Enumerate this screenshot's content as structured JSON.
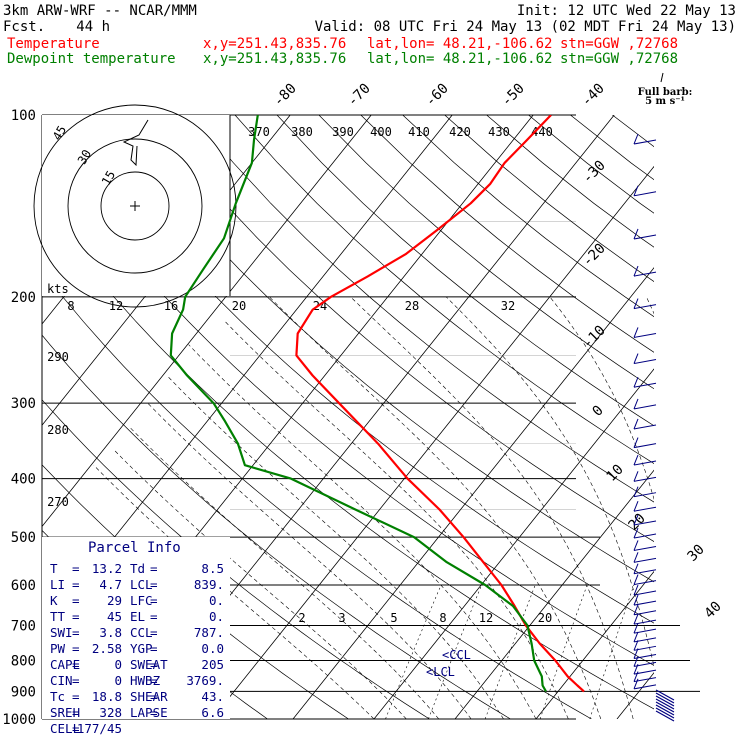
{
  "header": {
    "model": "3km ARW-WRF -- NCAR/MMM",
    "init": "Init: 12 UTC Wed 22 May 13",
    "fcst_label": "Fcst.",
    "fcst_value": "44 h",
    "valid": "Valid: 08 UTC Fri 24 May 13 (02 MDT Fri 24 May 13)",
    "temp_label": "Temperature",
    "dew_label": "Dewpoint temperature",
    "xy": "x,y=251.43,835.76",
    "latlon": "lat,lon= 48.21,-106.62",
    "stn": "stn=GGW ,72768"
  },
  "barb_legend": {
    "title": "Full barb:",
    "value": "5 m s⁻¹"
  },
  "hodograph": {
    "units": "kts",
    "ring_labels": [
      "15",
      "30",
      "45"
    ],
    "speed_ticks": [
      "8",
      "12",
      "16",
      "20",
      "24",
      "28",
      "32"
    ]
  },
  "theta_labels": [
    "370",
    "380",
    "390",
    "400",
    "410",
    "420",
    "430",
    "440"
  ],
  "theta_labels_left": [
    "290",
    "280",
    "270"
  ],
  "mixing_ratio_labels": [
    "2",
    "3",
    "5",
    "8",
    "12",
    "20"
  ],
  "markers": {
    "ccl": "<CCL",
    "lcl": "<LCL"
  },
  "parcel_info": {
    "title": "Parcel Info",
    "rows": [
      [
        "T",
        "=",
        "13.2",
        "Td",
        "=",
        "8.5"
      ],
      [
        "LI",
        "=",
        "4.7",
        "LCL",
        "=",
        "839."
      ],
      [
        "K",
        "=",
        "29",
        "LFC",
        "=",
        "0."
      ],
      [
        "TT",
        "=",
        "45",
        "EL",
        "=",
        "0."
      ],
      [
        "SWI",
        "=",
        "3.8",
        "CCL",
        "=",
        "787."
      ],
      [
        "PW",
        "=",
        "2.58",
        "YGP",
        "=",
        "0.0"
      ],
      [
        "CAPE",
        "=",
        "0",
        "SWEAT",
        "=",
        "205"
      ],
      [
        "CIN",
        "=",
        "0",
        "HWBZ",
        "=",
        "3769."
      ],
      [
        "Tc",
        "=",
        "18.8",
        "SHEAR",
        "=",
        "43."
      ],
      [
        "SREH",
        "=",
        "328",
        "LAPSE",
        "=",
        "6.6"
      ],
      [
        "CELL",
        "=",
        "177/45",
        "",
        "",
        ""
      ]
    ]
  },
  "colors": {
    "temperature": "#ff0000",
    "dewpoint": "#008000",
    "info": "#000080",
    "barbs": "#000080"
  },
  "chart_data": {
    "type": "line",
    "title": "",
    "ylabel": "",
    "xlabel": "",
    "y_scale": "log",
    "pressure_levels_hpa": [
      100,
      200,
      300,
      400,
      500,
      600,
      700,
      800,
      900,
      1000
    ],
    "x_ticks_top": [
      -80,
      -70,
      -60,
      -50,
      -40
    ],
    "x_ticks_right": [
      -30,
      -20,
      -10,
      0,
      10,
      20,
      30,
      40
    ],
    "series": [
      {
        "name": "Temperature",
        "color": "#ff0000",
        "pressure_hpa": [
          900,
          880,
          850,
          800,
          750,
          700,
          650,
          600,
          550,
          500,
          450,
          400,
          350,
          300,
          270,
          250,
          230,
          210,
          200,
          185,
          170,
          155,
          140,
          130,
          120,
          110,
          100
        ],
        "temp_c": [
          13.2,
          11.8,
          9.7,
          6.6,
          3.0,
          -0.5,
          -3.8,
          -7.5,
          -12.0,
          -16.9,
          -22.6,
          -29.6,
          -36.7,
          -45.5,
          -51.5,
          -55.5,
          -57.5,
          -58.0,
          -57.0,
          -54.5,
          -52.0,
          -50.5,
          -49.0,
          -48.5,
          -48.8,
          -48.3,
          -47.8
        ]
      },
      {
        "name": "Dewpoint temperature",
        "color": "#008000",
        "pressure_hpa": [
          900,
          880,
          850,
          800,
          750,
          700,
          650,
          600,
          550,
          500,
          450,
          400,
          380,
          350,
          320,
          300,
          270,
          250,
          230,
          210,
          200,
          180,
          160,
          140,
          120,
          110,
          100
        ],
        "temp_c": [
          8.5,
          7.5,
          6.5,
          4.0,
          2.0,
          -0.3,
          -4.0,
          -9.5,
          -16.5,
          -23.0,
          -33.0,
          -44.0,
          -51.0,
          -54.0,
          -58.0,
          -61.0,
          -67.0,
          -71.0,
          -73.0,
          -74.0,
          -75.0,
          -75.5,
          -76.0,
          -78.0,
          -80.0,
          -82.0,
          -84.0
        ]
      }
    ]
  }
}
